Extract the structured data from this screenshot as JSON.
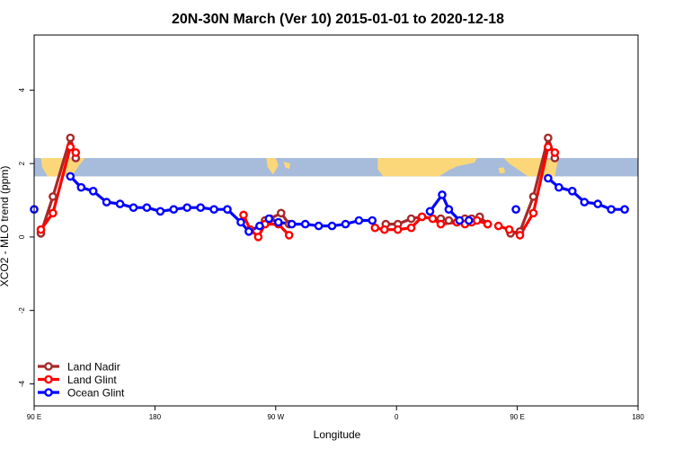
{
  "chart_data": {
    "type": "line",
    "title": "20N-30N March (Ver 10)   2015-01-01 to 2020-12-18",
    "xlabel": "Longitude",
    "ylabel": "XCO2 - MLO trend (ppm)",
    "xlim": [
      90,
      540
    ],
    "ylim": [
      -4.6,
      5.5
    ],
    "x_ticks": [
      {
        "value": 90,
        "label": "90 E"
      },
      {
        "value": 180,
        "label": "180"
      },
      {
        "value": 270,
        "label": "90 W"
      },
      {
        "value": 360,
        "label": "0"
      },
      {
        "value": 450,
        "label": "90 E"
      },
      {
        "value": 540,
        "label": "180"
      }
    ],
    "y_ticks": [
      {
        "value": -4,
        "label": "-4"
      },
      {
        "value": -2,
        "label": "-2"
      },
      {
        "value": 0,
        "label": "0"
      },
      {
        "value": 2,
        "label": "2"
      },
      {
        "value": 4,
        "label": "4"
      }
    ],
    "legend_position": "bottom-left",
    "map_strip": {
      "y_range": [
        1.65,
        2.15
      ],
      "ocean_color": "#a7bbdb",
      "land_color": "#fcd779"
    },
    "series": [
      {
        "name": "Land Nadir",
        "color": "#a52a2a",
        "segments": [
          [
            [
              95,
              0.1
            ],
            [
              104,
              1.1
            ],
            [
              117,
              2.7
            ],
            [
              121,
              2.15
            ]
          ],
          [
            [
              262,
              0.45
            ],
            [
              266,
              0.5
            ],
            [
              274,
              0.65
            ],
            [
              280,
              0.35
            ]
          ],
          [
            [
              352,
              0.35
            ],
            [
              361,
              0.35
            ],
            [
              371,
              0.5
            ],
            [
              379,
              0.55
            ],
            [
              387,
              0.5
            ],
            [
              393,
              0.5
            ],
            [
              399,
              0.45
            ],
            [
              405,
              0.4
            ],
            [
              411,
              0.5
            ],
            [
              416,
              0.5
            ],
            [
              422,
              0.55
            ],
            [
              428,
              0.35
            ]
          ],
          [
            [
              445,
              0.1
            ],
            [
              452,
              0.15
            ],
            [
              462,
              1.1
            ],
            [
              473,
              2.7
            ],
            [
              478,
              2.15
            ]
          ]
        ]
      },
      {
        "name": "Land Glint",
        "color": "#ff0000",
        "segments": [
          [
            [
              95,
              0.2
            ],
            [
              104,
              0.65
            ],
            [
              117,
              2.45
            ],
            [
              121,
              2.3
            ]
          ],
          [
            [
              246,
              0.6
            ],
            [
              251,
              0.2
            ],
            [
              257,
              0.0
            ],
            [
              262,
              0.35
            ],
            [
              272,
              0.35
            ],
            [
              280,
              0.05
            ]
          ],
          [
            [
              344,
              0.25
            ],
            [
              351,
              0.2
            ],
            [
              361,
              0.2
            ],
            [
              371,
              0.25
            ],
            [
              379,
              0.55
            ],
            [
              387,
              0.5
            ],
            [
              393,
              0.35
            ],
            [
              405,
              0.4
            ],
            [
              411,
              0.35
            ],
            [
              416,
              0.4
            ],
            [
              420,
              0.45
            ],
            [
              428,
              0.35
            ]
          ],
          [
            [
              436,
              0.3
            ],
            [
              444,
              0.2
            ],
            [
              452,
              0.05
            ],
            [
              462,
              0.65
            ],
            [
              473,
              2.45
            ],
            [
              478,
              2.3
            ]
          ]
        ]
      },
      {
        "name": "Ocean Glint",
        "color": "#0000ff",
        "segments": [
          [
            [
              90,
              0.75
            ]
          ],
          [
            [
              117,
              1.65
            ],
            [
              125,
              1.35
            ],
            [
              134,
              1.25
            ],
            [
              144,
              0.95
            ],
            [
              154,
              0.9
            ],
            [
              164,
              0.8
            ],
            [
              174,
              0.8
            ],
            [
              184,
              0.7
            ],
            [
              194,
              0.75
            ],
            [
              204,
              0.8
            ],
            [
              214,
              0.8
            ],
            [
              224,
              0.75
            ],
            [
              234,
              0.75
            ],
            [
              244,
              0.4
            ],
            [
              250,
              0.15
            ],
            [
              258,
              0.3
            ],
            [
              265,
              0.5
            ],
            [
              272,
              0.4
            ],
            [
              282,
              0.35
            ],
            [
              292,
              0.35
            ],
            [
              302,
              0.3
            ],
            [
              312,
              0.3
            ],
            [
              322,
              0.35
            ],
            [
              332,
              0.45
            ],
            [
              342,
              0.45
            ]
          ],
          [
            [
              385,
              0.7
            ],
            [
              394,
              1.15
            ],
            [
              399,
              0.75
            ],
            [
              407,
              0.45
            ],
            [
              414,
              0.45
            ]
          ],
          [
            [
              449,
              0.75
            ]
          ],
          [
            [
              473,
              1.6
            ],
            [
              481,
              1.35
            ],
            [
              491,
              1.25
            ],
            [
              500,
              0.95
            ],
            [
              510,
              0.9
            ],
            [
              520,
              0.75
            ],
            [
              530,
              0.75
            ]
          ]
        ]
      }
    ]
  }
}
